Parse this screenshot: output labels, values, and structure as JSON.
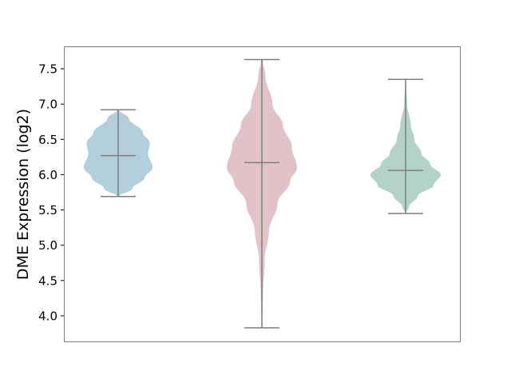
{
  "chart_data": {
    "type": "violin",
    "title": "",
    "xlabel": "",
    "ylabel": "DME Expression (log2)",
    "ylim": [
      3.68,
      7.8
    ],
    "yticks": [
      "4.0",
      "4.5",
      "5.0",
      "5.5",
      "6.0",
      "6.5",
      "7.0",
      "7.5"
    ],
    "grid": false,
    "series": [
      {
        "color": "#b3cfdc",
        "min": 5.69,
        "max": 6.92,
        "median": 6.27,
        "density": [
          [
            6.92,
            0.02
          ],
          [
            6.8,
            0.3
          ],
          [
            6.6,
            0.7
          ],
          [
            6.45,
            0.9
          ],
          [
            6.3,
            0.85
          ],
          [
            6.1,
            0.98
          ],
          [
            5.95,
            0.75
          ],
          [
            5.8,
            0.4
          ],
          [
            5.69,
            0.02
          ]
        ]
      },
      {
        "color": "#e0c2c8",
        "min": 3.83,
        "max": 7.63,
        "median": 6.17,
        "density": [
          [
            7.63,
            0.02
          ],
          [
            7.4,
            0.1
          ],
          [
            7.0,
            0.3
          ],
          [
            6.7,
            0.6
          ],
          [
            6.4,
            0.85
          ],
          [
            6.1,
            1.0
          ],
          [
            5.9,
            0.8
          ],
          [
            5.6,
            0.45
          ],
          [
            5.2,
            0.2
          ],
          [
            4.8,
            0.08
          ],
          [
            4.3,
            0.03
          ],
          [
            3.83,
            0.01
          ]
        ]
      },
      {
        "color": "#b3d3c8",
        "min": 5.45,
        "max": 7.35,
        "median": 6.06,
        "density": [
          [
            7.35,
            0.01
          ],
          [
            7.0,
            0.04
          ],
          [
            6.7,
            0.15
          ],
          [
            6.5,
            0.25
          ],
          [
            6.3,
            0.45
          ],
          [
            6.15,
            0.7
          ],
          [
            6.0,
            1.0
          ],
          [
            5.85,
            0.8
          ],
          [
            5.7,
            0.35
          ],
          [
            5.55,
            0.1
          ],
          [
            5.45,
            0.01
          ]
        ]
      }
    ]
  }
}
